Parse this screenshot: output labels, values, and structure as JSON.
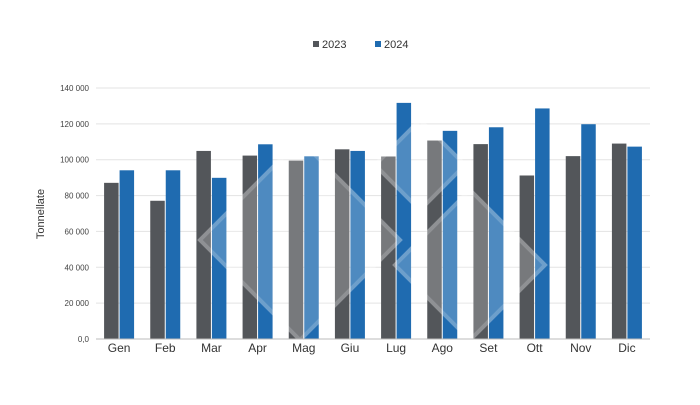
{
  "chart_data": {
    "type": "bar",
    "title": "",
    "xlabel": "",
    "ylabel": "Tonnellate",
    "ylim": [
      0,
      140000
    ],
    "yticks": [
      0,
      20000,
      40000,
      60000,
      80000,
      100000,
      120000,
      140000
    ],
    "ytick_labels": [
      "0,0",
      "20 000",
      "40 000",
      "60 000",
      "80 000",
      "100 000",
      "120 000",
      "140 000"
    ],
    "grid": true,
    "legend_position": "top",
    "categories": [
      "Gen",
      "Feb",
      "Mar",
      "Apr",
      "Mag",
      "Giu",
      "Lug",
      "Ago",
      "Set",
      "Ott",
      "Nov",
      "Dic"
    ],
    "series": [
      {
        "name": "2023",
        "color": "#53565a",
        "values": [
          87100,
          77100,
          104900,
          102300,
          99500,
          105800,
          101800,
          110700,
          108700,
          91200,
          102000,
          109000
        ]
      },
      {
        "name": "2024",
        "color": "#1f6bb0",
        "values": [
          94100,
          94100,
          89900,
          108600,
          101900,
          104900,
          131700,
          116100,
          118100,
          128600,
          119800,
          107300
        ]
      }
    ]
  }
}
